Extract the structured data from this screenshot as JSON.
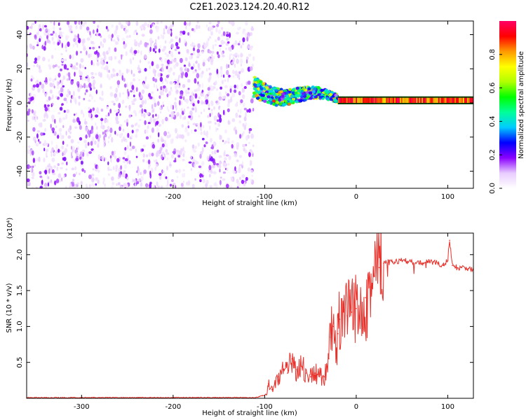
{
  "title": "C2E1.2023.124.20.40.R12",
  "chart_data": [
    {
      "type": "heatmap",
      "xlabel": "Height of straight line (km)",
      "ylabel": "Frequency (Hz)",
      "xlim": [
        -360,
        128
      ],
      "ylim": [
        -50,
        48
      ],
      "x_ticks": [
        -300,
        -200,
        -100,
        0,
        100
      ],
      "y_ticks": [
        40,
        20,
        0,
        -20,
        -40
      ],
      "colorbar": {
        "label": "Normalized spectral amplitude",
        "range": [
          0.0,
          1.0
        ],
        "ticks": [
          "0.0",
          "0.2",
          "0.4",
          "0.6",
          "0.8"
        ],
        "colors": [
          "#ffffff",
          "#e8ccff",
          "#8a00ff",
          "#0000ff",
          "#00ccff",
          "#00ff99",
          "#00ff00",
          "#b0ff00",
          "#ffff00",
          "#ff9900",
          "#ff0000",
          "#ff0066"
        ]
      },
      "regions": [
        {
          "name": "noise",
          "x_range": [
            -360,
            -112
          ],
          "freq_range": [
            -50,
            48
          ],
          "amplitude_range": [
            0.0,
            0.15
          ]
        },
        {
          "name": "transition",
          "x_range": [
            -112,
            -20
          ],
          "freq_start": 10,
          "freq_end": 1.5,
          "amplitude_range": [
            0.2,
            0.85
          ]
        },
        {
          "name": "carrier",
          "x_range": [
            -20,
            128
          ],
          "freq": 1.5,
          "amplitude_range": [
            0.75,
            1.0
          ]
        }
      ]
    },
    {
      "type": "line",
      "xlabel": "Height of straight line (km)",
      "ylabel": "SNR (10 * v/v)",
      "y_multiplier": "(x10⁴)",
      "xlim": [
        -360,
        128
      ],
      "ylim": [
        0,
        2.3
      ],
      "x_ticks": [
        -300,
        -200,
        -100,
        0,
        100
      ],
      "y_ticks": [
        "0.5",
        "1.0",
        "1.5",
        "2.0"
      ],
      "color": "#e8302a",
      "x": [
        -360,
        -300,
        -200,
        -110,
        -98,
        -96,
        -92,
        -85,
        -80,
        -75,
        -70,
        -65,
        -60,
        -55,
        -50,
        -45,
        -40,
        -35,
        -30,
        -28,
        -25,
        -22,
        -20,
        -18,
        -15,
        -10,
        -5,
        0,
        5,
        10,
        15,
        20,
        25,
        30,
        40,
        50,
        60,
        70,
        80,
        90,
        95,
        100,
        102,
        105,
        110,
        115,
        120,
        128
      ],
      "y": [
        0.01,
        0.01,
        0.01,
        0.01,
        0.05,
        0.2,
        0.12,
        0.3,
        0.4,
        0.35,
        0.55,
        0.4,
        0.45,
        0.35,
        0.3,
        0.35,
        0.3,
        0.3,
        0.55,
        0.85,
        1.0,
        0.6,
        0.9,
        1.1,
        1.05,
        1.15,
        1.2,
        1.25,
        1.35,
        1.4,
        1.55,
        1.7,
        1.82,
        1.88,
        1.9,
        1.92,
        1.9,
        1.88,
        1.9,
        1.88,
        1.85,
        1.92,
        2.2,
        1.85,
        1.82,
        1.82,
        1.8,
        1.8
      ]
    }
  ]
}
